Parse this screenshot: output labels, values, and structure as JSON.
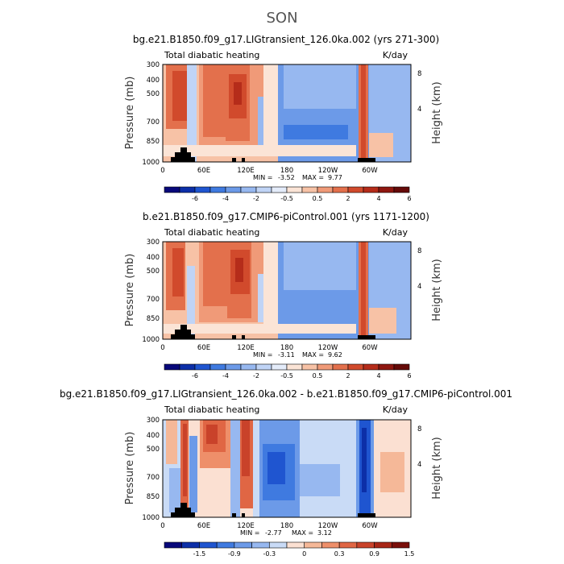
{
  "figure": {
    "title": "SON"
  },
  "chart_data": [
    {
      "type": "heatmap",
      "title": "bg.e21.B1850.f09_g17.LIGtransient_126.0ka.002 (yrs 271-300)",
      "left_label": "Total diabatic heating",
      "right_label": "K/day",
      "ylabel": "Pressure (mb)",
      "y2label": "Height (km)",
      "x_ticks": [
        "0",
        "60E",
        "120E",
        "180",
        "120W",
        "60W"
      ],
      "y_ticks": [
        "300",
        "400",
        "500",
        "700",
        "850",
        "1000"
      ],
      "y2_ticks": [
        "8",
        "4"
      ],
      "min_label": "MIN =",
      "min_value": "-3.52",
      "max_label": "MAX =",
      "max_value": "9.77",
      "colorbar_labels": [
        "-6",
        "-4",
        "-2",
        "-0.5",
        "0.5",
        "2",
        "4",
        "6"
      ]
    },
    {
      "type": "heatmap",
      "title": "b.e21.B1850.f09_g17.CMIP6-piControl.001 (yrs 1171-1200)",
      "left_label": "Total diabatic heating",
      "right_label": "K/day",
      "ylabel": "Pressure (mb)",
      "y2label": "Height (km)",
      "x_ticks": [
        "0",
        "60E",
        "120E",
        "180",
        "120W",
        "60W"
      ],
      "y_ticks": [
        "300",
        "400",
        "500",
        "700",
        "850",
        "1000"
      ],
      "y2_ticks": [
        "8",
        "4"
      ],
      "min_label": "MIN =",
      "min_value": "-3.11",
      "max_label": "MAX =",
      "max_value": "9.62",
      "colorbar_labels": [
        "-6",
        "-4",
        "-2",
        "-0.5",
        "0.5",
        "2",
        "4",
        "6"
      ]
    },
    {
      "type": "heatmap",
      "title": "bg.e21.B1850.f09_g17.LIGtransient_126.0ka.002 - b.e21.B1850.f09_g17.CMIP6-piControl.001",
      "left_label": "Total diabatic heating",
      "right_label": "K/day",
      "ylabel": "Pressure (mb)",
      "y2label": "Height (km)",
      "x_ticks": [
        "0",
        "60E",
        "120E",
        "180",
        "120W",
        "60W"
      ],
      "y_ticks": [
        "300",
        "400",
        "500",
        "700",
        "850",
        "1000"
      ],
      "y2_ticks": [
        "8",
        "4"
      ],
      "min_label": "MIN =",
      "min_value": "-2.77",
      "max_label": "MAX =",
      "max_value": "3.12",
      "colorbar_labels": [
        "-1.5",
        "-0.9",
        "-0.3",
        "0",
        "0.3",
        "0.9",
        "1.5"
      ]
    }
  ],
  "colors": {
    "colorbar_16": [
      "#08087a",
      "#0c2fa8",
      "#1f55d0",
      "#3f7ae0",
      "#6c9ae8",
      "#97b8f0",
      "#c0d4f6",
      "#e4ecfa",
      "#fbe4d6",
      "#f7c2a6",
      "#f09a78",
      "#e3704c",
      "#d14a2c",
      "#b52c1a",
      "#8f1710",
      "#650a08"
    ],
    "colorbar_14": [
      "#08087a",
      "#0c2fa8",
      "#1f55d0",
      "#3f7ae0",
      "#6c9ae8",
      "#97b8f0",
      "#c9dbf6",
      "#fbe0d2",
      "#f5b898",
      "#ee8f6a",
      "#e06644",
      "#c9422a",
      "#a82616",
      "#7a0f0a"
    ]
  }
}
